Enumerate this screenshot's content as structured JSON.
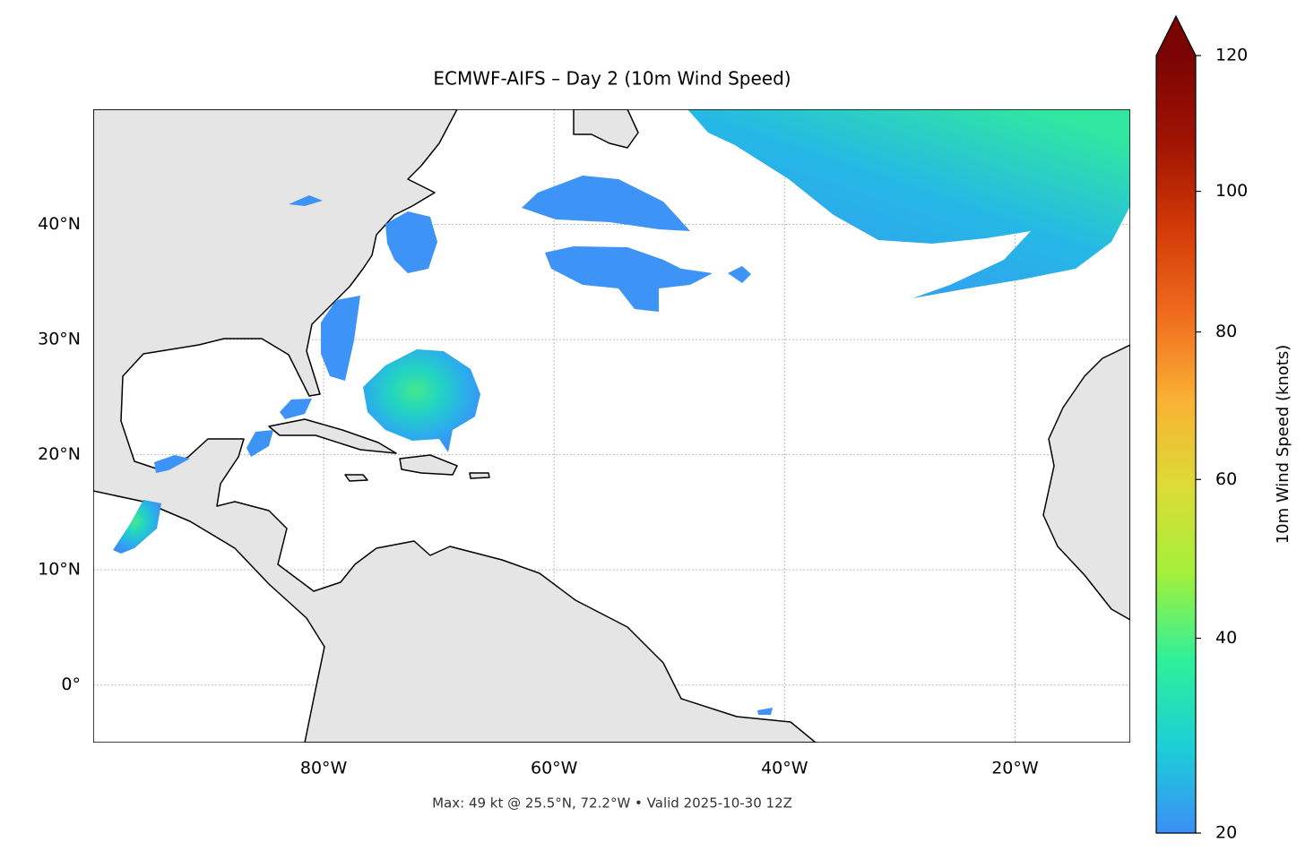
{
  "chart_data": {
    "type": "map",
    "title": "ECMWF-AIFS – Day 2 (10m Wind Speed)",
    "subtitle": "Max: 49 kt @ 25.5°N, 72.2°W • Valid 2025-10-30 12Z",
    "xlim": [
      -100,
      -10
    ],
    "ylim": [
      -5,
      50
    ],
    "xticks": [
      {
        "value": -80,
        "label": "80°W"
      },
      {
        "value": -60,
        "label": "60°W"
      },
      {
        "value": -40,
        "label": "40°W"
      },
      {
        "value": -20,
        "label": "20°W"
      }
    ],
    "yticks": [
      {
        "value": 0,
        "label": "0°"
      },
      {
        "value": 10,
        "label": "10°N"
      },
      {
        "value": 20,
        "label": "20°N"
      },
      {
        "value": 30,
        "label": "30°N"
      },
      {
        "value": 40,
        "label": "40°N"
      }
    ],
    "grid": true,
    "colorbar": {
      "label": "10m Wind Speed (knots)",
      "lim": [
        20,
        120
      ],
      "ticks": [
        20,
        40,
        60,
        80,
        100,
        120
      ],
      "norm": "power",
      "gamma": 0.86,
      "extend": "max",
      "colors": [
        "#3b8ff5",
        "#1ccfd6",
        "#2ef09a",
        "#a3f03a",
        "#dcdc36",
        "#f9b234",
        "#f06c1e",
        "#d23a08",
        "#a01303",
        "#7a0403"
      ]
    }
  }
}
